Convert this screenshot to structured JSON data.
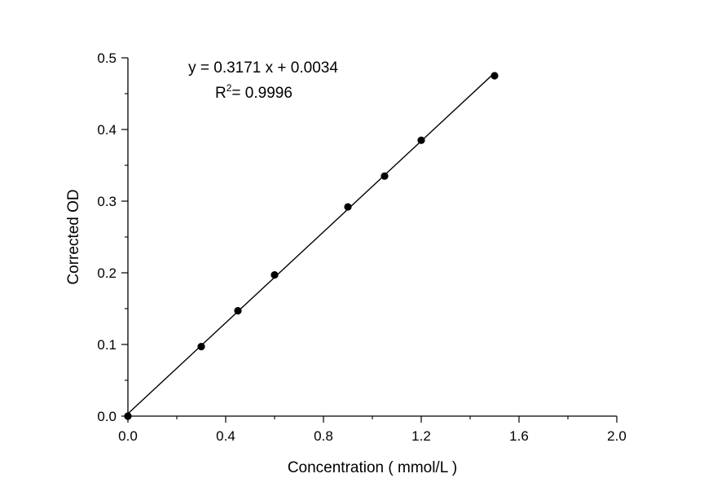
{
  "chart_data": {
    "type": "scatter",
    "xlabel": "Concentration ( mmol/L )",
    "ylabel": "Corrected OD",
    "xlim": [
      0,
      2.0
    ],
    "ylim": [
      0,
      0.5
    ],
    "x_ticks": [
      "0.0",
      "0.4",
      "0.8",
      "1.2",
      "1.6",
      "2.0"
    ],
    "y_ticks": [
      "0.0",
      "0.1",
      "0.2",
      "0.3",
      "0.4",
      "0.5"
    ],
    "x_tick_values": [
      0,
      0.4,
      0.8,
      1.2,
      1.6,
      2.0
    ],
    "y_tick_values": [
      0,
      0.1,
      0.2,
      0.3,
      0.4,
      0.5
    ],
    "x_minor_step": 0.2,
    "y_minor_step": 0.05,
    "grid": false,
    "series": [
      {
        "x": [
          0.0,
          0.3,
          0.45,
          0.6,
          0.9,
          1.05,
          1.2,
          1.5
        ],
        "y": [
          0.0,
          0.097,
          0.147,
          0.197,
          0.292,
          0.335,
          0.385,
          0.475
        ]
      }
    ],
    "fit": {
      "slope": 0.3171,
      "intercept": 0.0034,
      "x_range": [
        0.0,
        1.5
      ],
      "equation_label": "y = 0.3171 x + 0.0034",
      "r2_prefix": "R",
      "r2_sup": "2",
      "r2_value": "= 0.9996"
    },
    "colors": {
      "marker": "#000000",
      "line": "#000000",
      "axis": "#000000"
    }
  }
}
